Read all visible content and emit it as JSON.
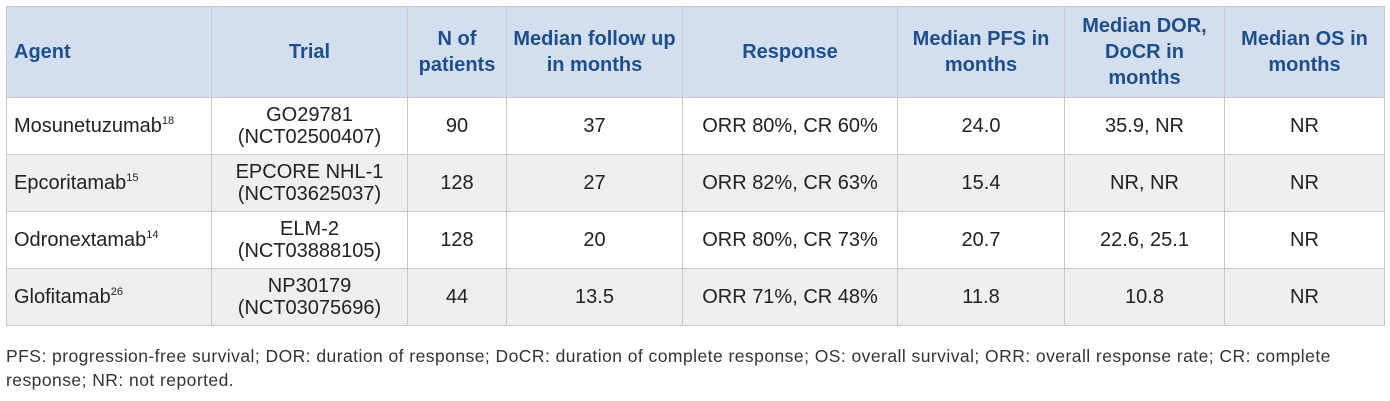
{
  "table": {
    "headers": [
      "Agent",
      "Trial",
      "N of patients",
      "Median follow up in months",
      "Response",
      "Median PFS in months",
      "Median DOR, DoCR in months",
      "Median OS in months"
    ],
    "rows": [
      {
        "agent": "Mosunetuzumab",
        "ref": "18",
        "trial_id": "GO29781",
        "trial_nct": "(NCT02500407)",
        "n": "90",
        "followup": "37",
        "response": "ORR 80%, CR 60%",
        "pfs": "24.0",
        "dor": "35.9, NR",
        "os": "NR"
      },
      {
        "agent": "Epcoritamab",
        "ref": "15",
        "trial_id": "EPCORE NHL-1",
        "trial_nct": "(NCT03625037)",
        "n": "128",
        "followup": "27",
        "response": "ORR 82%, CR 63%",
        "pfs": "15.4",
        "dor": "NR, NR",
        "os": "NR"
      },
      {
        "agent": "Odronextamab",
        "ref": "14",
        "trial_id": "ELM-2",
        "trial_nct": "(NCT03888105)",
        "n": "128",
        "followup": "20",
        "response": "ORR 80%, CR 73%",
        "pfs": "20.7",
        "dor": "22.6, 25.1",
        "os": "NR"
      },
      {
        "agent": "Glofitamab",
        "ref": "26",
        "trial_id": "NP30179",
        "trial_nct": "(NCT03075696)",
        "n": "44",
        "followup": "13.5",
        "response": "ORR 71%, CR 48%",
        "pfs": "11.8",
        "dor": "10.8",
        "os": "NR"
      }
    ]
  },
  "footnote": "PFS: progression-free survival; DOR: duration of response; DoCR: duration of complete response; OS: overall survival; ORR: overall response rate; CR: complete response; NR: not reported."
}
